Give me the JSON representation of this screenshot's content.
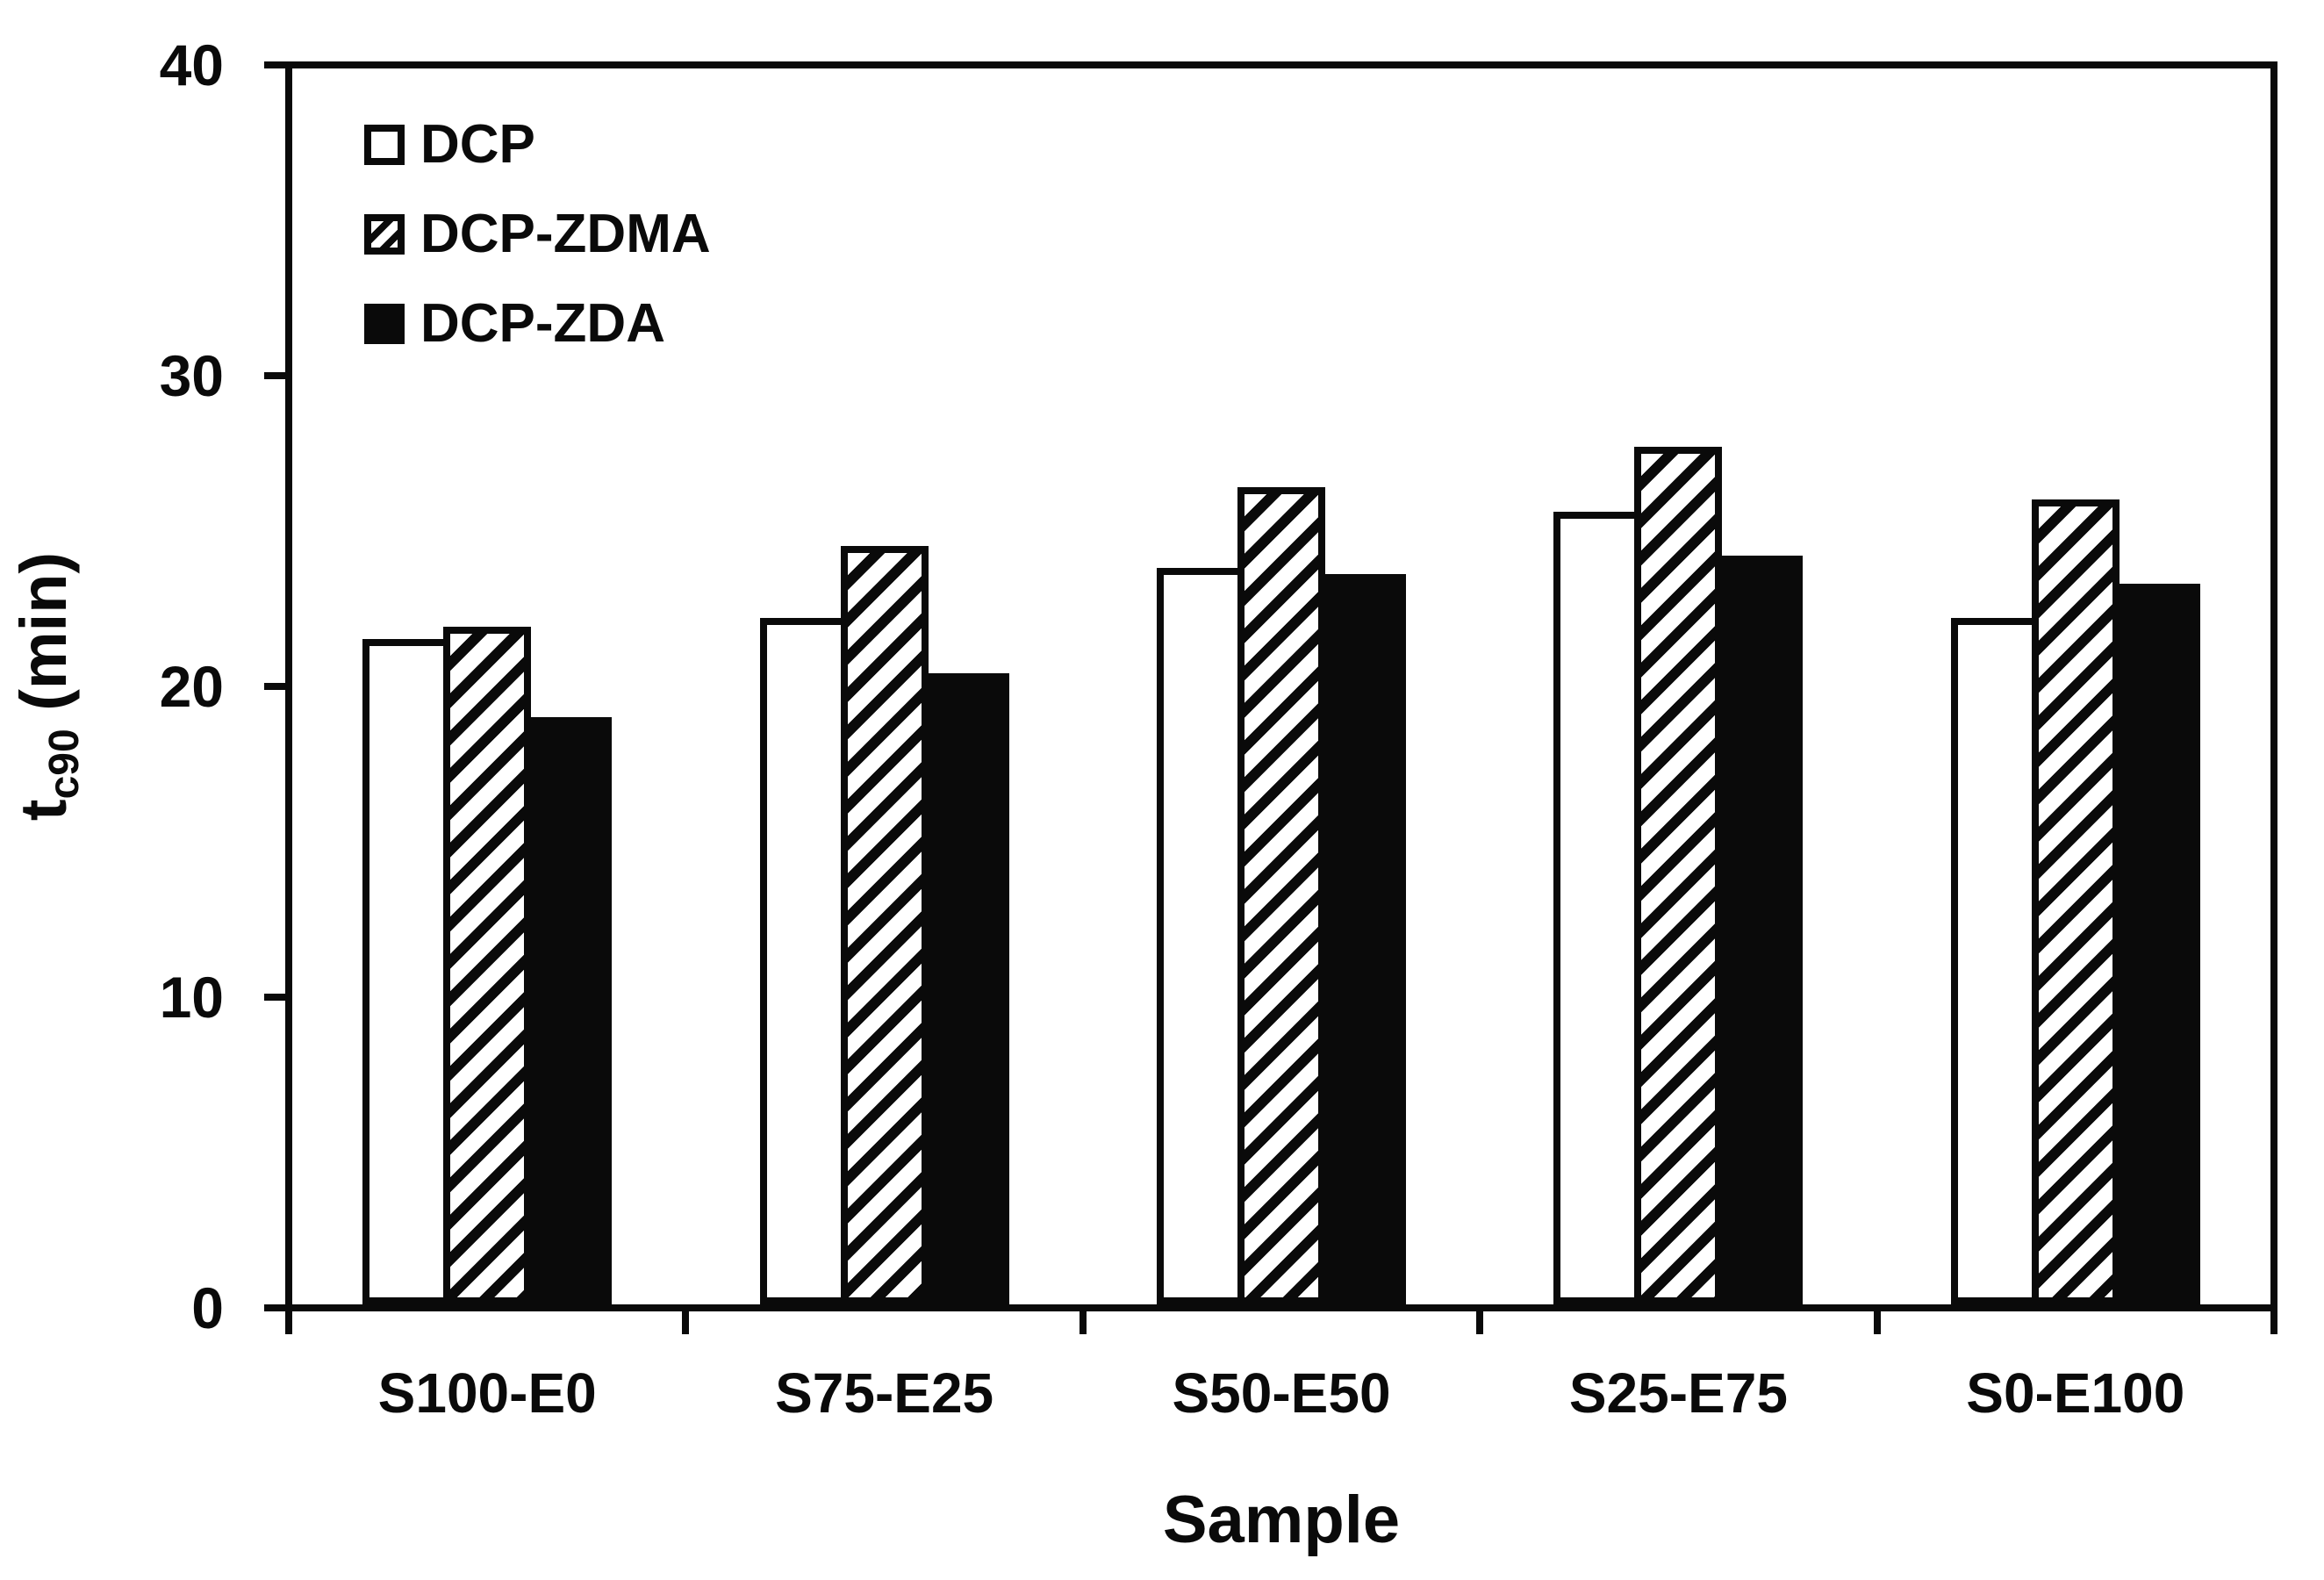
{
  "chart_data": {
    "type": "bar",
    "title": "",
    "xlabel": "Sample",
    "ylabel": {
      "main": "t",
      "sub": "c90",
      "rest": " (min)"
    },
    "ylim": [
      0,
      40
    ],
    "y_ticks": [
      40,
      30,
      20,
      10,
      0
    ],
    "categories": [
      "S100-E0",
      "S75-E25",
      "S50-E50",
      "S25-E75",
      "S0-E100"
    ],
    "series": [
      {
        "name": "DCP",
        "style": "open",
        "values": [
          21.4,
          22.1,
          23.7,
          25.5,
          22.1
        ]
      },
      {
        "name": "DCP-ZDMA",
        "style": "hatched",
        "values": [
          21.8,
          24.4,
          26.3,
          27.6,
          25.9
        ]
      },
      {
        "name": "DCP-ZDA",
        "style": "solid",
        "values": [
          18.9,
          20.3,
          23.5,
          24.1,
          23.2
        ]
      }
    ],
    "legend_position": "top-left-inside",
    "grid": false,
    "colors": {
      "ink": "#0a0a0a",
      "background": "#ffffff"
    }
  }
}
